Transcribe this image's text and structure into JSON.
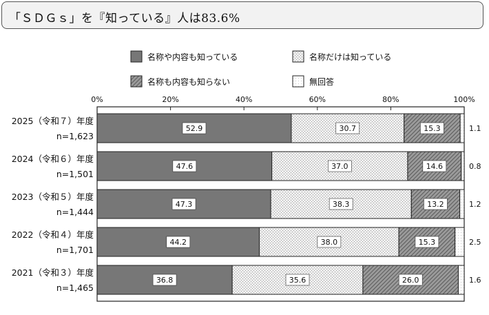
{
  "title": "「ＳＤＧｓ」を『知っている』人は83.6%",
  "chart_data": {
    "type": "bar",
    "orientation": "horizontal",
    "stacked": true,
    "xlim": [
      0,
      100
    ],
    "x_ticks": [
      "0%",
      "20%",
      "40%",
      "60%",
      "80%",
      "100%"
    ],
    "categories": [
      {
        "year": "2025（令和７）年度",
        "n": "n=1,623"
      },
      {
        "year": "2024（令和６）年度",
        "n": "n=1,501"
      },
      {
        "year": "2023（令和５）年度",
        "n": "n=1,444"
      },
      {
        "year": "2022（令和４）年度",
        "n": "n=1,701"
      },
      {
        "year": "2021（令和３）年度",
        "n": "n=1,465"
      }
    ],
    "series": [
      {
        "name": "名称や内容も知っている",
        "color": "#777777",
        "pattern": "solid",
        "values": [
          52.9,
          47.6,
          47.3,
          44.2,
          36.8
        ]
      },
      {
        "name": "名称だけは知っている",
        "color": "#ebebeb",
        "pattern": "dots",
        "values": [
          30.7,
          37.0,
          38.3,
          38.0,
          35.6
        ]
      },
      {
        "name": "名称も内容も知らない",
        "color": "#8a8a8a",
        "pattern": "hatch",
        "values": [
          15.3,
          14.6,
          13.2,
          15.3,
          26.0
        ]
      },
      {
        "name": "無回答",
        "color": "#ffffff",
        "pattern": "dots-light",
        "values": [
          1.1,
          0.8,
          1.2,
          2.5,
          1.6
        ]
      }
    ],
    "labels": [
      [
        "52.9",
        "30.7",
        "15.3",
        "1.1"
      ],
      [
        "47.6",
        "37.0",
        "14.6",
        "0.8"
      ],
      [
        "47.3",
        "38.3",
        "13.2",
        "1.2"
      ],
      [
        "44.2",
        "38.0",
        "15.3",
        "2.5"
      ],
      [
        "36.8",
        "35.6",
        "26.0",
        "1.6"
      ]
    ],
    "legend_position": "top"
  }
}
